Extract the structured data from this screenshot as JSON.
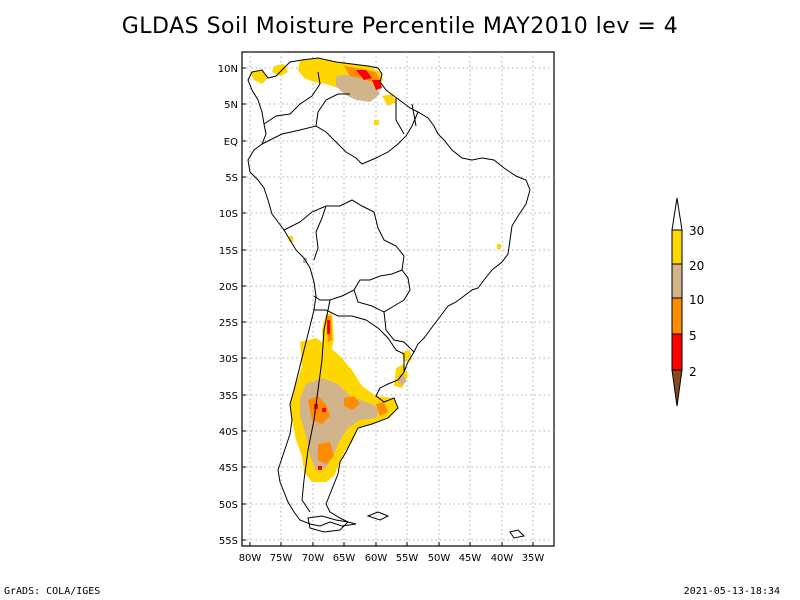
{
  "title": "GLDAS Soil Moisture Percentile MAY2010 lev = 4",
  "map": {
    "region": "South America",
    "lat_ticks": [
      "10N",
      "5N",
      "EQ",
      "5S",
      "10S",
      "15S",
      "20S",
      "25S",
      "30S",
      "35S",
      "40S",
      "45S",
      "50S",
      "55S"
    ],
    "lon_ticks": [
      "80W",
      "75W",
      "70W",
      "65W",
      "60W",
      "55W",
      "50W",
      "45W",
      "40W",
      "35W"
    ],
    "grid": true
  },
  "colorbar": {
    "labels": [
      "2",
      "5",
      "10",
      "20",
      "30"
    ],
    "colors": {
      "below_2": "#8a4a14",
      "2_5": "#ff0000",
      "5_10": "#ff8c00",
      "10_20": "#d2b48c",
      "20_30": "#ffd700",
      "above_30": "#ffffff"
    }
  },
  "footer": {
    "left": "GrADS: COLA/IGES",
    "right": "2021-05-13-18:34"
  }
}
